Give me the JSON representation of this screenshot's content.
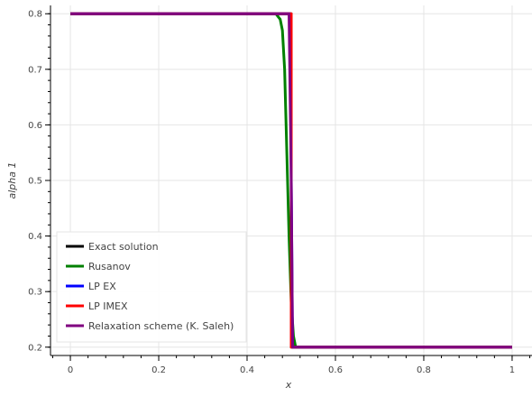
{
  "chart_data": {
    "type": "line",
    "xlabel": "x",
    "ylabel": "alpha 1",
    "xlim": [
      -0.045,
      1.045
    ],
    "ylim": [
      0.185,
      0.815
    ],
    "x_ticks": [
      0,
      0.2,
      0.4,
      0.6,
      0.8,
      1
    ],
    "x_tick_labels": [
      "0",
      "0.2",
      "0.4",
      "0.6",
      "0.8",
      "1"
    ],
    "y_ticks": [
      0.2,
      0.3,
      0.4,
      0.5,
      0.6,
      0.7,
      0.8
    ],
    "y_tick_labels": [
      "0.2",
      "0.3",
      "0.4",
      "0.5",
      "0.6",
      "0.7",
      "0.8"
    ],
    "grid": true,
    "legend_position": "bottom-left",
    "series": [
      {
        "name": "Exact solution",
        "color": "#000000",
        "x": [
          0,
          0.5,
          0.5,
          1
        ],
        "y": [
          0.8,
          0.8,
          0.2,
          0.2
        ]
      },
      {
        "name": "Rusanov",
        "color": "#008000",
        "x": [
          0,
          0.465,
          0.475,
          0.48,
          0.485,
          0.49,
          0.495,
          0.5,
          0.505,
          0.51,
          1
        ],
        "y": [
          0.8,
          0.8,
          0.79,
          0.77,
          0.7,
          0.55,
          0.4,
          0.28,
          0.22,
          0.2,
          0.2
        ]
      },
      {
        "name": "LP EX",
        "color": "#0000ff",
        "x": [
          0,
          0.497,
          0.5,
          0.503,
          1
        ],
        "y": [
          0.8,
          0.8,
          0.5,
          0.2,
          0.2
        ]
      },
      {
        "name": "LP IMEX",
        "color": "#ff0000",
        "x": [
          0,
          0.5,
          0.5,
          1
        ],
        "y": [
          0.8,
          0.8,
          0.2,
          0.2
        ]
      },
      {
        "name": "Relaxation scheme (K. Saleh)",
        "color": "#800080",
        "x": [
          0,
          0.495,
          0.5,
          0.503,
          1
        ],
        "y": [
          0.8,
          0.8,
          0.5,
          0.2,
          0.2
        ]
      }
    ]
  }
}
